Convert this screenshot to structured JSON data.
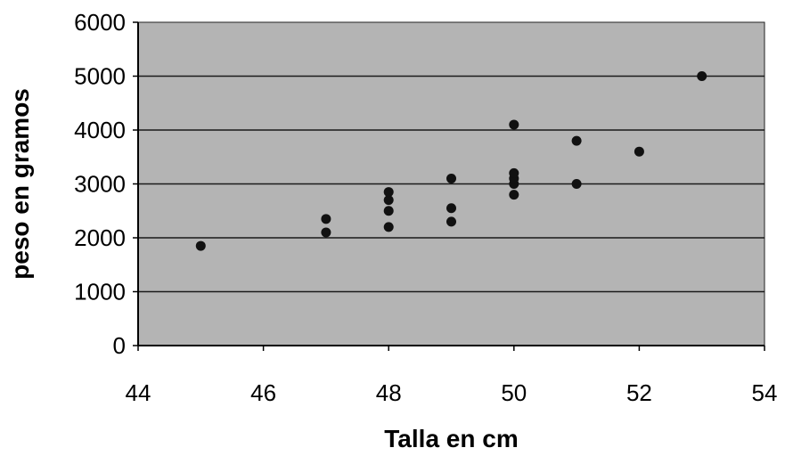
{
  "chart_data": {
    "type": "scatter",
    "title": "",
    "xlabel": "Talla en cm",
    "ylabel": "peso en gramos",
    "xlim": [
      44,
      54
    ],
    "ylim": [
      0,
      6000
    ],
    "xticks": [
      "44",
      "46",
      "48",
      "50",
      "52",
      "54"
    ],
    "yticks": [
      "0",
      "1000",
      "2000",
      "3000",
      "4000",
      "5000",
      "6000"
    ],
    "grid": "horizontal",
    "legend": "none",
    "colors": {
      "plot_background": "#b4b4b4",
      "marker": "#111111",
      "gridline": "#1a1a1a"
    },
    "points": [
      {
        "x": 45,
        "y": 1850
      },
      {
        "x": 47,
        "y": 2100
      },
      {
        "x": 47,
        "y": 2350
      },
      {
        "x": 48,
        "y": 2200
      },
      {
        "x": 48,
        "y": 2500
      },
      {
        "x": 48,
        "y": 2700
      },
      {
        "x": 48,
        "y": 2850
      },
      {
        "x": 49,
        "y": 2300
      },
      {
        "x": 49,
        "y": 2550
      },
      {
        "x": 49,
        "y": 3100
      },
      {
        "x": 50,
        "y": 2800
      },
      {
        "x": 50,
        "y": 3000
      },
      {
        "x": 50,
        "y": 3100
      },
      {
        "x": 50,
        "y": 3200
      },
      {
        "x": 50,
        "y": 4100
      },
      {
        "x": 51,
        "y": 3000
      },
      {
        "x": 51,
        "y": 3800
      },
      {
        "x": 52,
        "y": 3600
      },
      {
        "x": 53,
        "y": 5000
      }
    ]
  }
}
